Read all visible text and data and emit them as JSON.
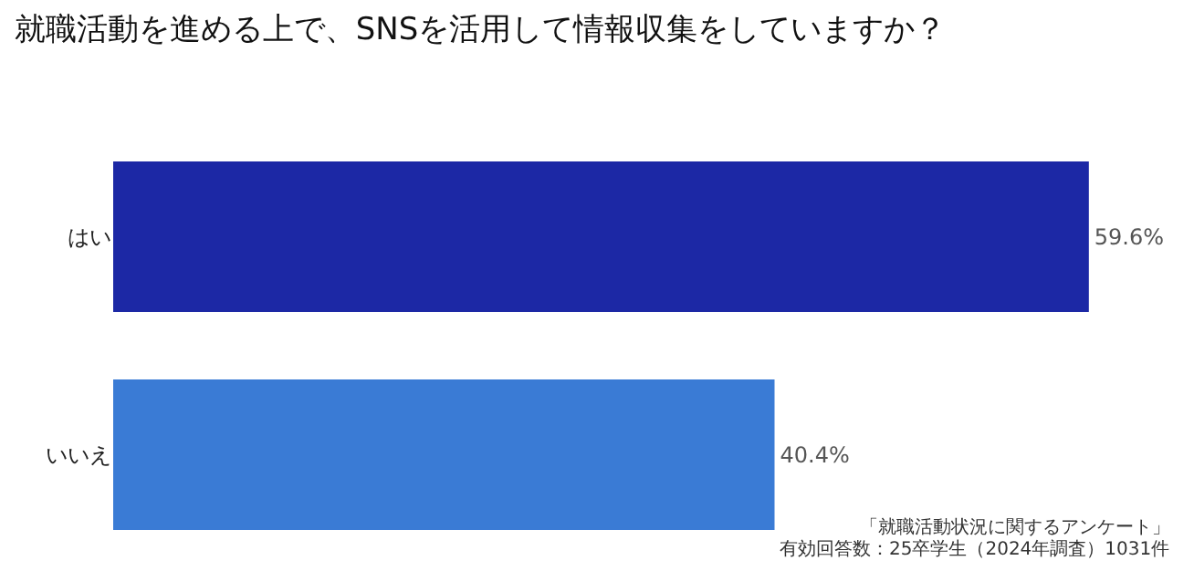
{
  "chart_data": {
    "type": "bar",
    "orientation": "horizontal",
    "title": "就職活動を進める上で、SNSを活用して情報収集をしていますか？",
    "categories": [
      "はい",
      "いいえ"
    ],
    "values": [
      59.6,
      40.4
    ],
    "colors": [
      "#1c28a5",
      "#3a7bd5"
    ],
    "value_labels": [
      "59.6%",
      "40.4%"
    ],
    "xlim": [
      0,
      60
    ],
    "tick_labels": "y",
    "annotations": [
      "「就職活動状況に関するアンケート」",
      "有効回答数：25卒学生（2024年調査）1031件"
    ]
  }
}
